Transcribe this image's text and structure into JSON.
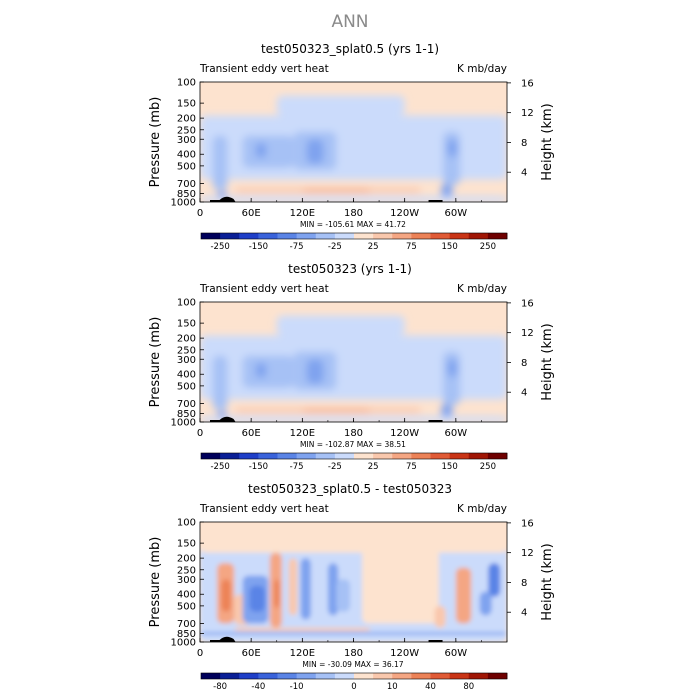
{
  "page_title": "ANN",
  "chart_data": [
    {
      "type": "heatmap",
      "title": "test050323_splat0.5 (yrs 1-1)",
      "left_label": "Transient eddy vert heat",
      "right_label": "K mb/day",
      "ylabel": "Pressure (mb)",
      "ylabel_right": "Height (km)",
      "x_ticks": [
        "0",
        "60E",
        "120E",
        "180",
        "120W",
        "60W"
      ],
      "y_ticks": [
        "100",
        "150",
        "200",
        "250",
        "300",
        "400",
        "500",
        "700",
        "850",
        "1000"
      ],
      "y_ticks_right": [
        "16",
        "12",
        "8",
        "4"
      ],
      "stats": "MIN = -105.61   MAX =  41.72",
      "min": -105.61,
      "max": 41.72,
      "colorbar_labels": [
        "-250",
        "-150",
        "-75",
        "-25",
        "25",
        "75",
        "150",
        "250"
      ],
      "colorbar_colors": [
        "#00005a",
        "#0a1f96",
        "#1f3fc8",
        "#3a63db",
        "#5a84e6",
        "#7fa3ef",
        "#a6c1f5",
        "#cbdbfb",
        "#fde3cf",
        "#f9c8ad",
        "#f4a683",
        "#ec8257",
        "#e05a35",
        "#c93415",
        "#a01605",
        "#6e0000"
      ]
    },
    {
      "type": "heatmap",
      "title": "test050323 (yrs 1-1)",
      "left_label": "Transient eddy vert heat",
      "right_label": "K mb/day",
      "ylabel": "Pressure (mb)",
      "ylabel_right": "Height (km)",
      "x_ticks": [
        "0",
        "60E",
        "120E",
        "180",
        "120W",
        "60W"
      ],
      "y_ticks": [
        "100",
        "150",
        "200",
        "250",
        "300",
        "400",
        "500",
        "700",
        "850",
        "1000"
      ],
      "y_ticks_right": [
        "16",
        "12",
        "8",
        "4"
      ],
      "stats": "MIN = -102.87   MAX =  38.51",
      "min": -102.87,
      "max": 38.51,
      "colorbar_labels": [
        "-250",
        "-150",
        "-75",
        "-25",
        "25",
        "75",
        "150",
        "250"
      ],
      "colorbar_colors": [
        "#00005a",
        "#0a1f96",
        "#1f3fc8",
        "#3a63db",
        "#5a84e6",
        "#7fa3ef",
        "#a6c1f5",
        "#cbdbfb",
        "#fde3cf",
        "#f9c8ad",
        "#f4a683",
        "#ec8257",
        "#e05a35",
        "#c93415",
        "#a01605",
        "#6e0000"
      ]
    },
    {
      "type": "heatmap",
      "title": "test050323_splat0.5 - test050323",
      "left_label": "Transient eddy vert heat",
      "right_label": "K mb/day",
      "ylabel": "Pressure (mb)",
      "ylabel_right": "Height (km)",
      "x_ticks": [
        "0",
        "60E",
        "120E",
        "180",
        "120W",
        "60W"
      ],
      "y_ticks": [
        "100",
        "150",
        "200",
        "250",
        "300",
        "400",
        "500",
        "700",
        "850",
        "1000"
      ],
      "y_ticks_right": [
        "16",
        "12",
        "8",
        "4"
      ],
      "stats": "MIN = -30.09   MAX =  36.17",
      "min": -30.09,
      "max": 36.17,
      "colorbar_labels": [
        "-80",
        "-40",
        "-10",
        "0",
        "10",
        "40",
        "80"
      ],
      "colorbar_colors": [
        "#00005a",
        "#0a1f96",
        "#1f3fc8",
        "#3a63db",
        "#5a84e6",
        "#7fa3ef",
        "#a6c1f5",
        "#cbdbfb",
        "#fde3cf",
        "#f9c8ad",
        "#f4a683",
        "#ec8257",
        "#e05a35",
        "#c93415",
        "#a01605",
        "#6e0000"
      ]
    }
  ]
}
